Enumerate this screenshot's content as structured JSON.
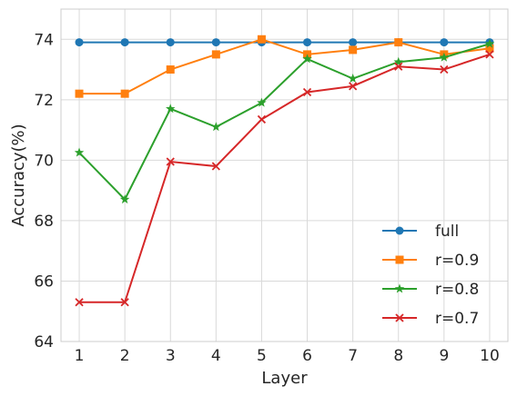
{
  "chart_data": {
    "type": "line",
    "title": "",
    "xlabel": "Layer",
    "ylabel": "Accuracy(%)",
    "x": [
      1,
      2,
      3,
      4,
      5,
      6,
      7,
      8,
      9,
      10
    ],
    "xticks": [
      "1",
      "2",
      "3",
      "4",
      "5",
      "6",
      "7",
      "8",
      "9",
      "10"
    ],
    "yticks": [
      "64",
      "66",
      "68",
      "70",
      "72",
      "74"
    ],
    "ylim": [
      64,
      75
    ],
    "grid": true,
    "legend_position": "lower-right",
    "series": [
      {
        "name": "full",
        "color": "#1f77b4",
        "marker": "circle",
        "values": [
          73.9,
          73.9,
          73.9,
          73.9,
          73.9,
          73.9,
          73.9,
          73.9,
          73.9,
          73.9
        ]
      },
      {
        "name": "r=0.9",
        "color": "#ff7f0e",
        "marker": "square",
        "values": [
          72.2,
          72.2,
          73.0,
          73.5,
          74.0,
          73.5,
          73.65,
          73.9,
          73.5,
          73.7
        ]
      },
      {
        "name": "r=0.8",
        "color": "#2ca02c",
        "marker": "star",
        "values": [
          70.25,
          68.7,
          71.7,
          71.1,
          71.9,
          73.35,
          72.7,
          73.25,
          73.4,
          73.85
        ]
      },
      {
        "name": "r=0.7",
        "color": "#d62728",
        "marker": "x",
        "values": [
          65.3,
          65.3,
          69.95,
          69.8,
          71.35,
          72.25,
          72.45,
          73.1,
          73.0,
          73.5
        ]
      }
    ]
  }
}
